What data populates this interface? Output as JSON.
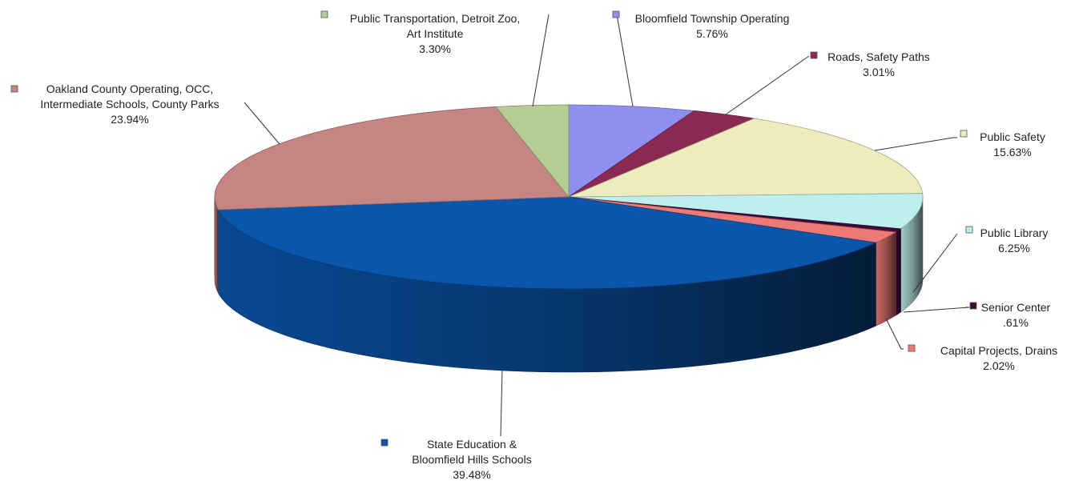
{
  "chart_data": {
    "type": "pie",
    "style": "3d-exploded-perspective",
    "series": [
      {
        "name": "",
        "slices": [
          {
            "label_lines": [
              "Bloomfield Township Operating"
            ],
            "value_text": "5.76%",
            "value": 5.76,
            "color": "#8f8ff0"
          },
          {
            "label_lines": [
              "Roads, Safety Paths"
            ],
            "value_text": "3.01%",
            "value": 3.01,
            "color": "#8a2a52"
          },
          {
            "label_lines": [
              "Public Safety"
            ],
            "value_text": "15.63%",
            "value": 15.63,
            "color": "#ececbe"
          },
          {
            "label_lines": [
              "Public Library"
            ],
            "value_text": "6.25%",
            "value": 6.25,
            "color": "#bfeeee"
          },
          {
            "label_lines": [
              "Senior Center"
            ],
            "value_text": ".61%",
            "value": 0.61,
            "color": "#3e0a3a"
          },
          {
            "label_lines": [
              "Capital Projects, Drains"
            ],
            "value_text": "2.02%",
            "value": 2.02,
            "color": "#ee7a76"
          },
          {
            "label_lines": [
              "State Education &",
              "Bloomfield Hills Schools"
            ],
            "value_text": "39.48%",
            "value": 39.48,
            "color": "#0a56ad"
          },
          {
            "label_lines": [
              "Oakland County Operating, OCC,",
              "Intermediate Schools, County Parks"
            ],
            "value_text": "23.94%",
            "value": 23.94,
            "color": "#c48583"
          },
          {
            "label_lines": [
              "Public Transportation, Detroit Zoo,",
              "Art Institute"
            ],
            "value_text": "3.30%",
            "value": 3.3,
            "color": "#b5cc95"
          }
        ]
      }
    ],
    "legend": "callout-labels-with-markers"
  }
}
